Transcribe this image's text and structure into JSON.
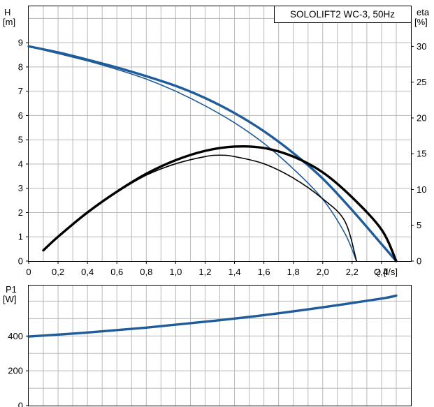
{
  "chart_data": [
    {
      "type": "line",
      "title": "SOLOLIFT2 WC-3, 50Hz",
      "x_axis": {
        "label": "Q [l/s]",
        "ticks": [
          "0",
          "0,2",
          "0,4",
          "0,6",
          "0,8",
          "1,0",
          "1,2",
          "1,4",
          "1,6",
          "1,8",
          "2,0",
          "2,2",
          "2,4"
        ],
        "range": [
          0,
          2.6
        ]
      },
      "y_left": {
        "label_top": "H",
        "label_unit": "[m]",
        "ticks": [
          "0",
          "1",
          "2",
          "3",
          "4",
          "5",
          "6",
          "7",
          "8",
          "9"
        ],
        "range": [
          0,
          10.5
        ]
      },
      "y_right": {
        "label_top": "eta",
        "label_unit": "[%]",
        "ticks": [
          "0",
          "5",
          "10",
          "15",
          "20",
          "25",
          "30"
        ],
        "range": [
          0,
          30
        ]
      },
      "grid": true,
      "series": [
        {
          "color": "#1f5c99",
          "width": 3.4,
          "axis": "left",
          "x": [
            0,
            0.2,
            0.4,
            0.6,
            0.8,
            1.0,
            1.2,
            1.4,
            1.6,
            1.8,
            2.0,
            2.2,
            2.4,
            2.5
          ],
          "y": [
            8.85,
            8.6,
            8.3,
            7.98,
            7.62,
            7.22,
            6.72,
            6.1,
            5.35,
            4.45,
            3.4,
            2.1,
            0.7,
            0
          ]
        },
        {
          "color": "#1f5c99",
          "width": 1.6,
          "axis": "left",
          "x": [
            0,
            0.2,
            0.4,
            0.6,
            0.8,
            1.0,
            1.2,
            1.4,
            1.6,
            1.8,
            2.0,
            2.15,
            2.23
          ],
          "y": [
            8.85,
            8.55,
            8.25,
            7.9,
            7.5,
            7.0,
            6.4,
            5.7,
            4.85,
            3.8,
            2.55,
            1.15,
            0
          ]
        },
        {
          "color": "#000000",
          "width": 3.4,
          "axis": "right",
          "x": [
            0.1,
            0.2,
            0.4,
            0.6,
            0.8,
            1.0,
            1.2,
            1.4,
            1.6,
            1.8,
            2.0,
            2.2,
            2.4,
            2.5
          ],
          "y": [
            1.5,
            3.4,
            6.8,
            9.7,
            12.2,
            14.1,
            15.4,
            16.0,
            15.8,
            14.6,
            12.4,
            8.9,
            4.4,
            0
          ]
        },
        {
          "color": "#000000",
          "width": 1.6,
          "axis": "right",
          "x": [
            0.1,
            0.2,
            0.4,
            0.6,
            0.8,
            1.0,
            1.2,
            1.3,
            1.4,
            1.6,
            1.8,
            2.0,
            2.15,
            2.23
          ],
          "y": [
            1.5,
            3.4,
            6.7,
            9.6,
            12.0,
            13.6,
            14.6,
            14.8,
            14.6,
            13.6,
            11.6,
            8.7,
            5.6,
            0
          ]
        }
      ]
    },
    {
      "type": "line",
      "y_axis": {
        "label_top": "P1",
        "label_unit": "[W]",
        "ticks": [
          "0",
          "200",
          "400"
        ],
        "range": [
          0,
          690
        ]
      },
      "x_range": [
        0,
        2.6
      ],
      "grid": true,
      "series": [
        {
          "color": "#1f5c99",
          "width": 3.4,
          "x": [
            0,
            0.4,
            0.8,
            1.2,
            1.6,
            2.0,
            2.4,
            2.5
          ],
          "y": [
            397,
            420,
            448,
            482,
            520,
            565,
            615,
            632
          ]
        }
      ]
    }
  ]
}
